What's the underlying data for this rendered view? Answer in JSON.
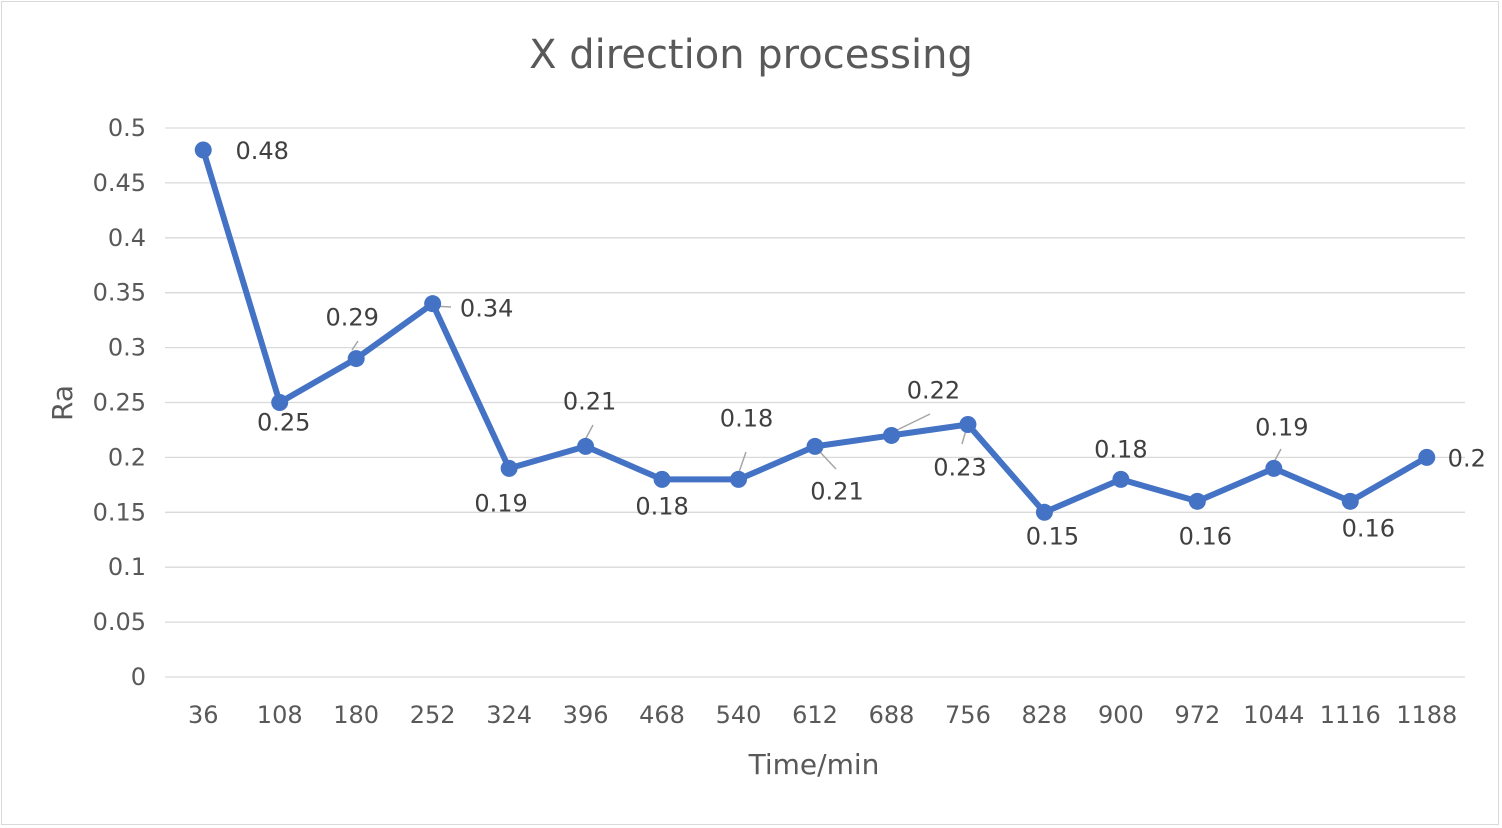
{
  "chart_data": {
    "type": "line",
    "title": "X direction processing",
    "xlabel": "Time/min",
    "ylabel": "Ra",
    "categories": [
      "36",
      "108",
      "180",
      "252",
      "324",
      "396",
      "468",
      "540",
      "612",
      "688",
      "756",
      "828",
      "900",
      "972",
      "1044",
      "1116",
      "1188"
    ],
    "y_tick_labels": [
      "0",
      "0.05",
      "0.1",
      "0.15",
      "0.2",
      "0.25",
      "0.3",
      "0.35",
      "0.4",
      "0.45",
      "0.5"
    ],
    "series": [
      {
        "values": [
          0.48,
          0.25,
          0.29,
          0.34,
          0.19,
          0.21,
          0.18,
          0.18,
          0.21,
          0.22,
          0.23,
          0.15,
          0.18,
          0.16,
          0.19,
          0.16,
          0.2
        ],
        "data_labels": [
          "0.48",
          "0.25",
          "0.29",
          "0.34",
          "0.19",
          "0.21",
          "0.18",
          "0.18",
          "0.21",
          "0.22",
          "0.23",
          "0.15",
          "0.18",
          "0.16",
          "0.19",
          "0.16",
          "0.2"
        ],
        "color": "#4472c4"
      }
    ],
    "ylim": [
      0,
      0.5
    ],
    "grid": "horizontal",
    "legend": "none"
  }
}
